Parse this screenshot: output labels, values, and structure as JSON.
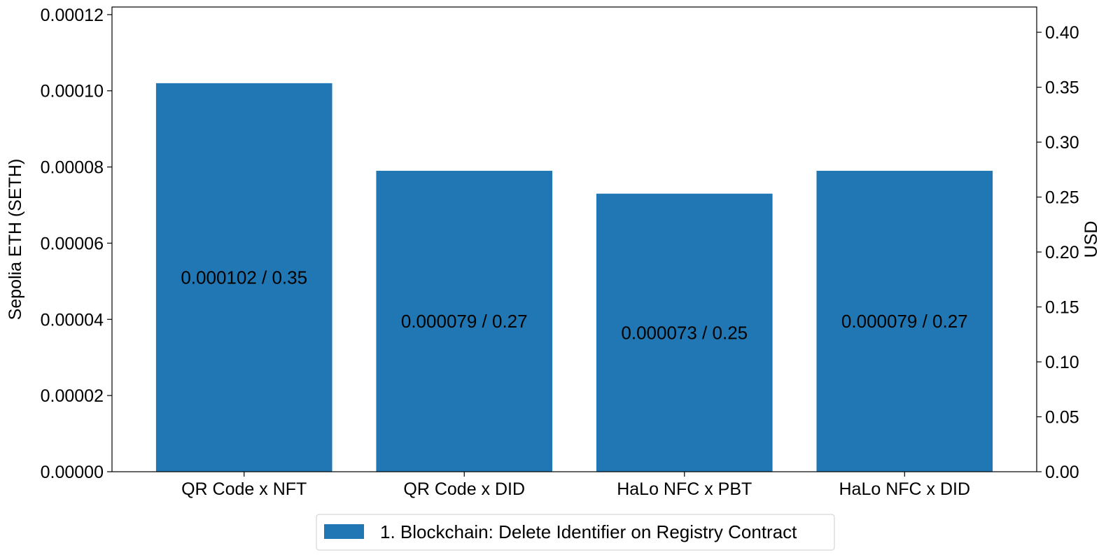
{
  "chart_data": {
    "type": "bar",
    "categories": [
      "QR Code x NFT",
      "QR Code x DID",
      "HaLo NFC x PBT",
      "HaLo NFC x DID"
    ],
    "series": [
      {
        "name": "1. Blockchain: Delete Identifier on Registry Contract",
        "values": [
          0.000102,
          7.9e-05,
          7.3e-05,
          7.9e-05
        ],
        "usd_values": [
          0.35,
          0.27,
          0.25,
          0.27
        ],
        "color": "#2077b4"
      }
    ],
    "bar_labels": [
      "0.000102 / 0.35",
      "0.000079 / 0.27",
      "0.000073 / 0.25",
      "0.000079 / 0.27"
    ],
    "ylabel": "Sepolia ETH (SETH)",
    "y2label": "USD",
    "ylim": [
      0,
      0.000122
    ],
    "y2lim": [
      0,
      0.423
    ],
    "yticks": [
      "0.00000",
      "0.00002",
      "0.00004",
      "0.00006",
      "0.00008",
      "0.00010",
      "0.00012"
    ],
    "y2ticks": [
      "0.00",
      "0.05",
      "0.10",
      "0.15",
      "0.20",
      "0.25",
      "0.30",
      "0.35",
      "0.40"
    ],
    "legend_position": "bottom-center",
    "grid": false
  }
}
